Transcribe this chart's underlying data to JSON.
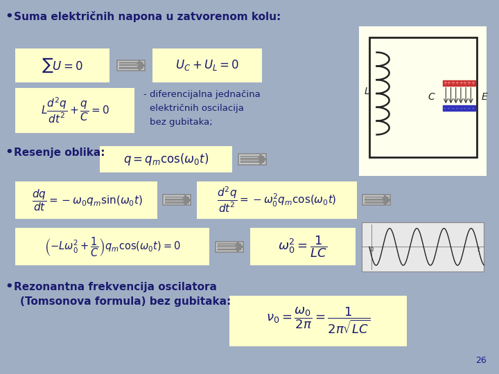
{
  "bg_color": "#a0aec4",
  "yellow_box_color": "#ffffcc",
  "title1": "Suma električnih napona u zatvorenom kolu:",
  "bullet2": "Resenje oblika:",
  "bullet3": "Rezonantna frekvencija oscilatora",
  "bullet3b": "(Tomsonova formula) bez gubitaka:",
  "page_num": "26",
  "text_color": "#1a1a6e",
  "formula_color": "#1a1a6e"
}
